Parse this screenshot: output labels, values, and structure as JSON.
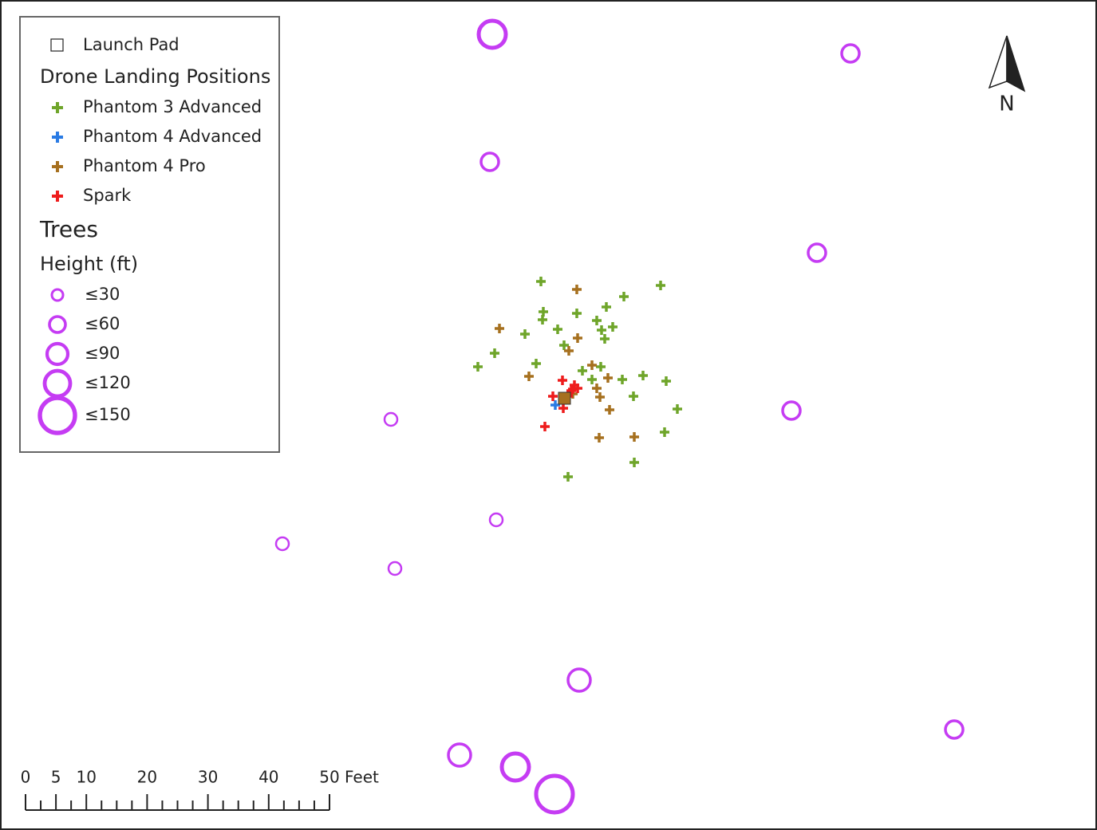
{
  "legend": {
    "launch_pad": "Launch Pad",
    "landing_title": "Drone Landing Positions",
    "drones": [
      "Phantom 3 Advanced",
      "Phantom 4 Advanced",
      "Phantom 4 Pro",
      "Spark"
    ],
    "trees_title": "Trees",
    "height_title": "Height (ft)",
    "heights": [
      "≤30",
      "≤60",
      "≤90",
      "≤120",
      "≤150"
    ]
  },
  "scale_bar": {
    "labels": [
      "0",
      "5",
      "10",
      "20",
      "30",
      "40",
      "50"
    ],
    "unit": "Feet"
  },
  "north_label": "N"
}
